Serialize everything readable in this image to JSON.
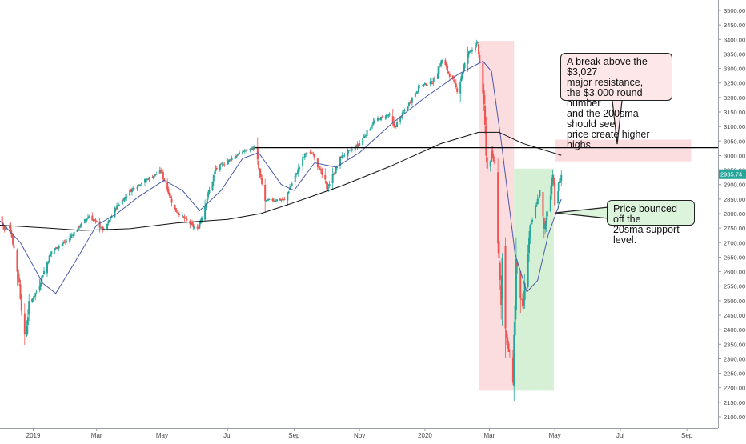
{
  "chart_data": {
    "type": "candlestick",
    "title": "",
    "xlabel": "",
    "ylabel": "",
    "ylim": [
      2050,
      3550
    ],
    "y_ticks": [
      2100,
      2150,
      2200,
      2250,
      2300,
      2350,
      2400,
      2450,
      2500,
      2550,
      2600,
      2650,
      2700,
      2750,
      2800,
      2850,
      2900,
      2950,
      3000,
      3050,
      3100,
      3150,
      3200,
      3250,
      3300,
      3350,
      3400,
      3450,
      3500
    ],
    "y_tick_labels": [
      "2100.00",
      "2150.00",
      "2200.00",
      "2250.00",
      "2300.00",
      "2350.00",
      "2400.00",
      "2450.00",
      "2500.00",
      "2550.00",
      "2600.00",
      "2650.00",
      "2700.00",
      "2750.00",
      "2800.00",
      "2850.00",
      "2900.00",
      "2950.00",
      "3000.00",
      "3050.00",
      "3100.00",
      "3150.00",
      "3200.00",
      "3250.00",
      "3300.00",
      "3350.00",
      "3400.00",
      "3450.00",
      "3500.00"
    ],
    "x_range": [
      "2018-12-01",
      "2020-09-30"
    ],
    "x_ticks": [
      {
        "date": "2019-01-01",
        "label": "2019"
      },
      {
        "date": "2019-03-01",
        "label": "Mar"
      },
      {
        "date": "2019-05-01",
        "label": "May"
      },
      {
        "date": "2019-07-01",
        "label": "Jul"
      },
      {
        "date": "2019-09-01",
        "label": "Sep"
      },
      {
        "date": "2019-11-01",
        "label": "Nov"
      },
      {
        "date": "2020-01-01",
        "label": "2020"
      },
      {
        "date": "2020-03-01",
        "label": "Mar"
      },
      {
        "date": "2020-05-01",
        "label": "May"
      },
      {
        "date": "2020-07-01",
        "label": "Jul"
      },
      {
        "date": "2020-09-01",
        "label": "Sep"
      }
    ],
    "grid": false,
    "price_keypoints": [
      {
        "date": "2018-12-01",
        "close": 2790
      },
      {
        "date": "2018-12-05",
        "close": 2745
      },
      {
        "date": "2018-12-10",
        "close": 2760
      },
      {
        "date": "2018-12-14",
        "close": 2680
      },
      {
        "date": "2018-12-19",
        "close": 2560
      },
      {
        "date": "2018-12-24",
        "close": 2351
      },
      {
        "date": "2018-12-28",
        "close": 2485
      },
      {
        "date": "2019-01-04",
        "close": 2532
      },
      {
        "date": "2019-01-18",
        "close": 2670
      },
      {
        "date": "2019-02-01",
        "close": 2706
      },
      {
        "date": "2019-02-22",
        "close": 2792
      },
      {
        "date": "2019-03-08",
        "close": 2743
      },
      {
        "date": "2019-03-20",
        "close": 2825
      },
      {
        "date": "2019-04-05",
        "close": 2892
      },
      {
        "date": "2019-04-30",
        "close": 2946
      },
      {
        "date": "2019-05-13",
        "close": 2812
      },
      {
        "date": "2019-05-31",
        "close": 2752
      },
      {
        "date": "2019-06-03",
        "close": 2744
      },
      {
        "date": "2019-06-20",
        "close": 2954
      },
      {
        "date": "2019-07-15",
        "close": 3014
      },
      {
        "date": "2019-07-26",
        "close": 3026
      },
      {
        "date": "2019-08-05",
        "close": 2844
      },
      {
        "date": "2019-08-15",
        "close": 2848
      },
      {
        "date": "2019-08-23",
        "close": 2847
      },
      {
        "date": "2019-09-12",
        "close": 3010
      },
      {
        "date": "2019-09-19",
        "close": 3006
      },
      {
        "date": "2019-10-02",
        "close": 2887
      },
      {
        "date": "2019-10-15",
        "close": 2995
      },
      {
        "date": "2019-10-31",
        "close": 3037
      },
      {
        "date": "2019-11-15",
        "close": 3120
      },
      {
        "date": "2019-11-29",
        "close": 3141
      },
      {
        "date": "2019-12-03",
        "close": 3093
      },
      {
        "date": "2019-12-27",
        "close": 3240
      },
      {
        "date": "2020-01-08",
        "close": 3253
      },
      {
        "date": "2020-01-17",
        "close": 3330
      },
      {
        "date": "2020-01-31",
        "close": 3225
      },
      {
        "date": "2020-02-10",
        "close": 3352
      },
      {
        "date": "2020-02-19",
        "close": 3386
      },
      {
        "date": "2020-02-24",
        "close": 3225
      },
      {
        "date": "2020-02-28",
        "close": 2954
      },
      {
        "date": "2020-03-03",
        "close": 3003
      },
      {
        "date": "2020-03-06",
        "close": 2972
      },
      {
        "date": "2020-03-09",
        "close": 2746
      },
      {
        "date": "2020-03-12",
        "close": 2480
      },
      {
        "date": "2020-03-13",
        "close": 2711
      },
      {
        "date": "2020-03-16",
        "close": 2386
      },
      {
        "date": "2020-03-20",
        "close": 2305
      },
      {
        "date": "2020-03-23",
        "close": 2237
      },
      {
        "date": "2020-03-26",
        "close": 2630
      },
      {
        "date": "2020-04-01",
        "close": 2470
      },
      {
        "date": "2020-04-08",
        "close": 2750
      },
      {
        "date": "2020-04-17",
        "close": 2875
      },
      {
        "date": "2020-04-21",
        "close": 2737
      },
      {
        "date": "2020-04-29",
        "close": 2939
      },
      {
        "date": "2020-05-01",
        "close": 2830
      },
      {
        "date": "2020-05-07",
        "close": 2935.74
      }
    ],
    "series": [
      {
        "values_ref": "price_keypoints",
        "style": "candles",
        "up_color": "#26a69a",
        "down_color": "#ef5350"
      },
      {
        "kind": "moving-average",
        "color": "#4a5aa8",
        "points": [
          {
            "date": "2018-12-01",
            "value": 2775
          },
          {
            "date": "2018-12-20",
            "value": 2700
          },
          {
            "date": "2019-01-10",
            "value": 2560
          },
          {
            "date": "2019-01-22",
            "value": 2525
          },
          {
            "date": "2019-02-10",
            "value": 2640
          },
          {
            "date": "2019-03-01",
            "value": 2760
          },
          {
            "date": "2019-03-20",
            "value": 2800
          },
          {
            "date": "2019-04-10",
            "value": 2860
          },
          {
            "date": "2019-05-03",
            "value": 2915
          },
          {
            "date": "2019-05-20",
            "value": 2880
          },
          {
            "date": "2019-06-05",
            "value": 2810
          },
          {
            "date": "2019-06-25",
            "value": 2880
          },
          {
            "date": "2019-07-15",
            "value": 2990
          },
          {
            "date": "2019-07-30",
            "value": 3010
          },
          {
            "date": "2019-08-20",
            "value": 2900
          },
          {
            "date": "2019-09-01",
            "value": 2880
          },
          {
            "date": "2019-09-20",
            "value": 2975
          },
          {
            "date": "2019-10-10",
            "value": 2960
          },
          {
            "date": "2019-11-01",
            "value": 3010
          },
          {
            "date": "2019-12-01",
            "value": 3110
          },
          {
            "date": "2020-01-01",
            "value": 3200
          },
          {
            "date": "2020-02-01",
            "value": 3280
          },
          {
            "date": "2020-02-24",
            "value": 3325
          },
          {
            "date": "2020-03-03",
            "value": 3290
          },
          {
            "date": "2020-03-12",
            "value": 3050
          },
          {
            "date": "2020-03-25",
            "value": 2660
          },
          {
            "date": "2020-04-05",
            "value": 2530
          },
          {
            "date": "2020-04-15",
            "value": 2570
          },
          {
            "date": "2020-04-25",
            "value": 2730
          },
          {
            "date": "2020-05-07",
            "value": 2850
          }
        ]
      },
      {
        "kind": "moving-average",
        "color": "#111111",
        "points": [
          {
            "date": "2018-12-01",
            "value": 2760
          },
          {
            "date": "2019-01-15",
            "value": 2750
          },
          {
            "date": "2019-02-15",
            "value": 2742
          },
          {
            "date": "2019-04-01",
            "value": 2748
          },
          {
            "date": "2019-05-15",
            "value": 2768
          },
          {
            "date": "2019-07-01",
            "value": 2780
          },
          {
            "date": "2019-08-01",
            "value": 2800
          },
          {
            "date": "2019-09-01",
            "value": 2838
          },
          {
            "date": "2019-10-15",
            "value": 2895
          },
          {
            "date": "2019-12-01",
            "value": 2965
          },
          {
            "date": "2020-01-15",
            "value": 3040
          },
          {
            "date": "2020-02-20",
            "value": 3080
          },
          {
            "date": "2020-03-10",
            "value": 3080
          },
          {
            "date": "2020-04-01",
            "value": 3042
          },
          {
            "date": "2020-05-07",
            "value": 3001
          }
        ]
      }
    ],
    "last_price": "2935.74",
    "annotations": [
      {
        "id": "resistance",
        "kind": "horizontal-line",
        "value": 3027,
        "from": "2019-07-26",
        "to": "2020-09-30",
        "color": "#000000"
      },
      {
        "id": "resistance-zone",
        "kind": "box",
        "x0": "2020-05-01",
        "x1": "2020-09-05",
        "y0": 2980,
        "y1": 3055,
        "color": "#fbdde0"
      },
      {
        "id": "crash-zone",
        "kind": "box",
        "x0": "2020-02-20",
        "x1": "2020-03-24",
        "y0": 2190,
        "y1": 3395,
        "color": "#fbdde0"
      },
      {
        "id": "rebound-zone",
        "kind": "box",
        "x0": "2020-03-24",
        "x1": "2020-04-30",
        "y0": 2190,
        "y1": 2955,
        "color": "#d6f0d6"
      }
    ],
    "callouts": [
      {
        "id": "resistance-callout",
        "text": "A break above the $3,027\nmajor resistance,\nthe $3,000 round number\nand the 200sma should see\nprice create higher highs."
      },
      {
        "id": "support-callout",
        "text": "Price bounced off the\n20sma support level."
      }
    ]
  }
}
